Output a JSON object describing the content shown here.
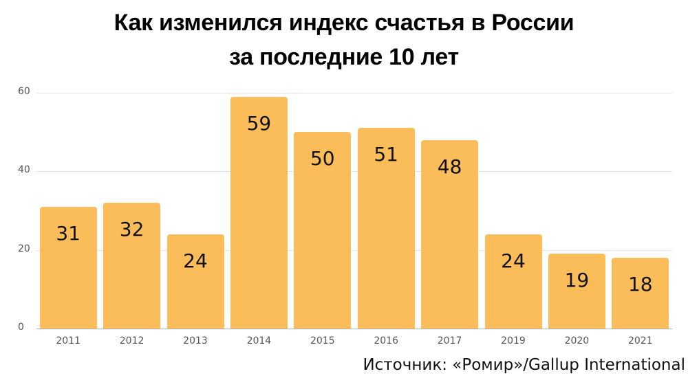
{
  "title_line1": "Как изменился индекс счастья в России",
  "title_line2": "за последние 10 лет",
  "source": "Источник: «Ромир»/Gallup International",
  "colors": {
    "bar": "#fbbc5a",
    "grid": "#e3e3e3",
    "text": "#111111"
  },
  "y_ticks": [
    "0",
    "20",
    "40",
    "60"
  ],
  "chart_data": {
    "type": "bar",
    "title": "Как изменился индекс счастья в России за последние 10 лет",
    "categories": [
      "2011",
      "2012",
      "2013",
      "2014",
      "2015",
      "2016",
      "2017",
      "2019",
      "2020",
      "2021"
    ],
    "values": [
      31,
      32,
      24,
      59,
      50,
      51,
      48,
      24,
      19,
      18
    ],
    "xlabel": "",
    "ylabel": "",
    "ylim": [
      0,
      60
    ],
    "yticks": [
      0,
      20,
      40,
      60
    ],
    "grid": true,
    "data_labels": true,
    "legend": null,
    "annotation": "Источник: «Ромир»/Gallup International"
  }
}
